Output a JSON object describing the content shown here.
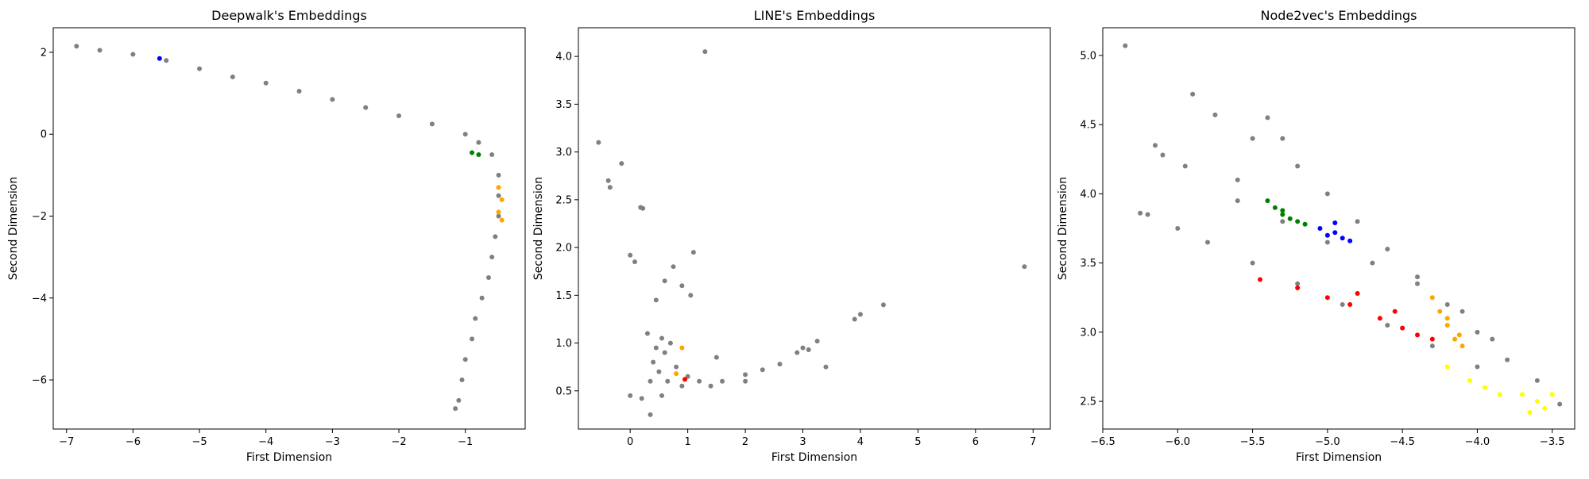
{
  "chart_data": [
    {
      "type": "scatter",
      "title": "Deepwalk's Embeddings",
      "xlabel": "First Dimension",
      "ylabel": "Second Dimension",
      "xlim": [
        -7.2,
        -0.1
      ],
      "ylim": [
        -7.2,
        2.6
      ],
      "xticks": [
        -7,
        -6,
        -5,
        -4,
        -3,
        -2,
        -1
      ],
      "xtick_labels": [
        "−7",
        "−6",
        "−5",
        "−4",
        "−3",
        "−2",
        "−1"
      ],
      "yticks": [
        -6,
        -4,
        -2,
        0,
        2
      ],
      "ytick_labels": [
        "−6",
        "−4",
        "−2",
        "0",
        "2"
      ],
      "grid": false,
      "series": [
        {
          "color": "#808080",
          "values": [
            [
              -6.85,
              2.15
            ],
            [
              -6.5,
              2.05
            ],
            [
              -6.0,
              1.95
            ],
            [
              -5.5,
              1.8
            ],
            [
              -5.0,
              1.6
            ],
            [
              -4.5,
              1.4
            ],
            [
              -4.0,
              1.25
            ],
            [
              -3.5,
              1.05
            ],
            [
              -3.0,
              0.85
            ],
            [
              -2.5,
              0.65
            ],
            [
              -2.0,
              0.45
            ],
            [
              -1.5,
              0.25
            ],
            [
              -1.0,
              0.0
            ],
            [
              -0.8,
              -0.2
            ],
            [
              -0.6,
              -0.5
            ],
            [
              -0.5,
              -1.0
            ],
            [
              -0.5,
              -1.5
            ],
            [
              -0.5,
              -2.0
            ],
            [
              -0.55,
              -2.5
            ],
            [
              -0.6,
              -3.0
            ],
            [
              -0.65,
              -3.5
            ],
            [
              -0.75,
              -4.0
            ],
            [
              -0.85,
              -4.5
            ],
            [
              -0.9,
              -5.0
            ],
            [
              -1.0,
              -5.5
            ],
            [
              -1.05,
              -6.0
            ],
            [
              -1.1,
              -6.5
            ],
            [
              -1.15,
              -6.7
            ]
          ]
        },
        {
          "color": "#0000ff",
          "values": [
            [
              -5.6,
              1.85
            ]
          ]
        },
        {
          "color": "#008000",
          "values": [
            [
              -0.9,
              -0.45
            ],
            [
              -0.8,
              -0.5
            ]
          ]
        },
        {
          "color": "#ffa500",
          "values": [
            [
              -0.5,
              -1.3
            ],
            [
              -0.45,
              -1.6
            ],
            [
              -0.5,
              -1.9
            ],
            [
              -0.45,
              -2.1
            ]
          ]
        }
      ]
    },
    {
      "type": "scatter",
      "title": "LINE's Embeddings",
      "xlabel": "First Dimension",
      "ylabel": "Second Dimension",
      "xlim": [
        -0.9,
        7.3
      ],
      "ylim": [
        0.1,
        4.3
      ],
      "xticks": [
        0,
        1,
        2,
        3,
        4,
        5,
        6,
        7
      ],
      "xtick_labels": [
        "0",
        "1",
        "2",
        "3",
        "4",
        "5",
        "6",
        "7"
      ],
      "yticks": [
        0.5,
        1.0,
        1.5,
        2.0,
        2.5,
        3.0,
        3.5,
        4.0
      ],
      "ytick_labels": [
        "0.5",
        "1.0",
        "1.5",
        "2.0",
        "2.5",
        "3.0",
        "3.5",
        "4.0"
      ],
      "grid": false,
      "series": [
        {
          "color": "#808080",
          "values": [
            [
              1.3,
              4.05
            ],
            [
              -0.55,
              3.1
            ],
            [
              -0.15,
              2.88
            ],
            [
              -0.38,
              2.7
            ],
            [
              -0.35,
              2.63
            ],
            [
              0.18,
              2.42
            ],
            [
              0.22,
              2.41
            ],
            [
              0.0,
              1.92
            ],
            [
              0.08,
              1.85
            ],
            [
              1.1,
              1.95
            ],
            [
              6.85,
              1.8
            ],
            [
              4.4,
              1.4
            ],
            [
              4.0,
              1.3
            ],
            [
              3.9,
              1.25
            ],
            [
              3.25,
              1.02
            ],
            [
              3.0,
              0.95
            ],
            [
              3.1,
              0.93
            ],
            [
              2.9,
              0.9
            ],
            [
              3.4,
              0.75
            ],
            [
              2.6,
              0.78
            ],
            [
              2.3,
              0.72
            ],
            [
              2.0,
              0.67
            ],
            [
              2.0,
              0.6
            ],
            [
              1.6,
              0.6
            ],
            [
              1.4,
              0.55
            ],
            [
              0.0,
              0.45
            ],
            [
              0.35,
              0.25
            ],
            [
              0.2,
              0.42
            ],
            [
              0.55,
              0.45
            ],
            [
              1.5,
              0.85
            ],
            [
              1.05,
              1.5
            ],
            [
              0.9,
              1.6
            ],
            [
              0.75,
              1.8
            ],
            [
              0.6,
              1.65
            ],
            [
              0.45,
              1.45
            ],
            [
              0.3,
              1.1
            ],
            [
              0.4,
              0.8
            ],
            [
              0.5,
              0.7
            ],
            [
              0.6,
              0.9
            ],
            [
              0.7,
              1.0
            ],
            [
              0.55,
              1.05
            ],
            [
              0.45,
              0.95
            ],
            [
              0.65,
              0.6
            ],
            [
              0.8,
              0.75
            ],
            [
              0.35,
              0.6
            ],
            [
              0.9,
              0.55
            ],
            [
              1.0,
              0.65
            ],
            [
              1.2,
              0.6
            ]
          ]
        },
        {
          "color": "#ffa500",
          "values": [
            [
              0.8,
              0.68
            ],
            [
              0.9,
              0.95
            ]
          ]
        },
        {
          "color": "#ff0000",
          "values": [
            [
              0.95,
              0.62
            ]
          ]
        }
      ]
    },
    {
      "type": "scatter",
      "title": "Node2vec's Embeddings",
      "xlabel": "First Dimension",
      "ylabel": "Second Dimension",
      "xlim": [
        -6.5,
        -3.35
      ],
      "ylim": [
        2.3,
        5.2
      ],
      "xticks": [
        -6.5,
        -6.0,
        -5.5,
        -5.0,
        -4.5,
        -4.0,
        -3.5
      ],
      "xtick_labels": [
        "−6.5",
        "−6.0",
        "−5.5",
        "−5.0",
        "−4.5",
        "−4.0",
        "−3.5"
      ],
      "yticks": [
        2.5,
        3.0,
        3.5,
        4.0,
        4.5,
        5.0
      ],
      "ytick_labels": [
        "2.5",
        "3.0",
        "3.5",
        "4.0",
        "4.5",
        "5.0"
      ],
      "grid": false,
      "series": [
        {
          "color": "#808080",
          "values": [
            [
              -6.35,
              5.07
            ],
            [
              -5.9,
              4.72
            ],
            [
              -5.75,
              4.57
            ],
            [
              -6.15,
              4.35
            ],
            [
              -6.1,
              4.28
            ],
            [
              -6.25,
              3.86
            ],
            [
              -6.2,
              3.85
            ],
            [
              -5.95,
              4.2
            ],
            [
              -5.6,
              4.1
            ],
            [
              -5.5,
              4.4
            ],
            [
              -5.4,
              4.55
            ],
            [
              -5.3,
              4.4
            ],
            [
              -5.2,
              4.2
            ],
            [
              -5.0,
              4.0
            ],
            [
              -4.8,
              3.8
            ],
            [
              -4.6,
              3.6
            ],
            [
              -4.4,
              3.4
            ],
            [
              -4.2,
              3.2
            ],
            [
              -4.0,
              3.0
            ],
            [
              -3.8,
              2.8
            ],
            [
              -3.6,
              2.65
            ],
            [
              -3.45,
              2.48
            ],
            [
              -6.0,
              3.75
            ],
            [
              -5.8,
              3.65
            ],
            [
              -5.5,
              3.5
            ],
            [
              -5.2,
              3.35
            ],
            [
              -4.9,
              3.2
            ],
            [
              -4.6,
              3.05
            ],
            [
              -4.3,
              2.9
            ],
            [
              -4.0,
              2.75
            ],
            [
              -5.6,
              3.95
            ],
            [
              -5.3,
              3.8
            ],
            [
              -5.0,
              3.65
            ],
            [
              -4.7,
              3.5
            ],
            [
              -4.4,
              3.35
            ],
            [
              -4.1,
              3.15
            ],
            [
              -3.9,
              2.95
            ]
          ]
        },
        {
          "color": "#008000",
          "values": [
            [
              -5.4,
              3.95
            ],
            [
              -5.35,
              3.9
            ],
            [
              -5.3,
              3.85
            ],
            [
              -5.25,
              3.82
            ],
            [
              -5.2,
              3.8
            ],
            [
              -5.15,
              3.78
            ],
            [
              -5.3,
              3.88
            ]
          ]
        },
        {
          "color": "#0000ff",
          "values": [
            [
              -5.05,
              3.75
            ],
            [
              -4.95,
              3.72
            ],
            [
              -4.9,
              3.68
            ],
            [
              -4.85,
              3.66
            ],
            [
              -5.0,
              3.7
            ],
            [
              -4.95,
              3.79
            ]
          ]
        },
        {
          "color": "#ff0000",
          "values": [
            [
              -5.45,
              3.38
            ],
            [
              -5.2,
              3.32
            ],
            [
              -5.0,
              3.25
            ],
            [
              -4.85,
              3.2
            ],
            [
              -4.65,
              3.1
            ],
            [
              -4.5,
              3.03
            ],
            [
              -4.4,
              2.98
            ],
            [
              -4.3,
              2.95
            ],
            [
              -4.8,
              3.28
            ],
            [
              -4.55,
              3.15
            ]
          ]
        },
        {
          "color": "#ffa500",
          "values": [
            [
              -4.3,
              3.25
            ],
            [
              -4.25,
              3.15
            ],
            [
              -4.2,
              3.05
            ],
            [
              -4.15,
              2.95
            ],
            [
              -4.1,
              2.9
            ],
            [
              -4.2,
              3.1
            ],
            [
              -4.12,
              2.98
            ]
          ]
        },
        {
          "color": "#ffff00",
          "values": [
            [
              -4.2,
              2.75
            ],
            [
              -4.05,
              2.65
            ],
            [
              -3.95,
              2.6
            ],
            [
              -3.85,
              2.55
            ],
            [
              -3.7,
              2.55
            ],
            [
              -3.6,
              2.5
            ],
            [
              -3.55,
              2.45
            ],
            [
              -3.65,
              2.42
            ],
            [
              -3.5,
              2.55
            ]
          ]
        }
      ]
    }
  ]
}
